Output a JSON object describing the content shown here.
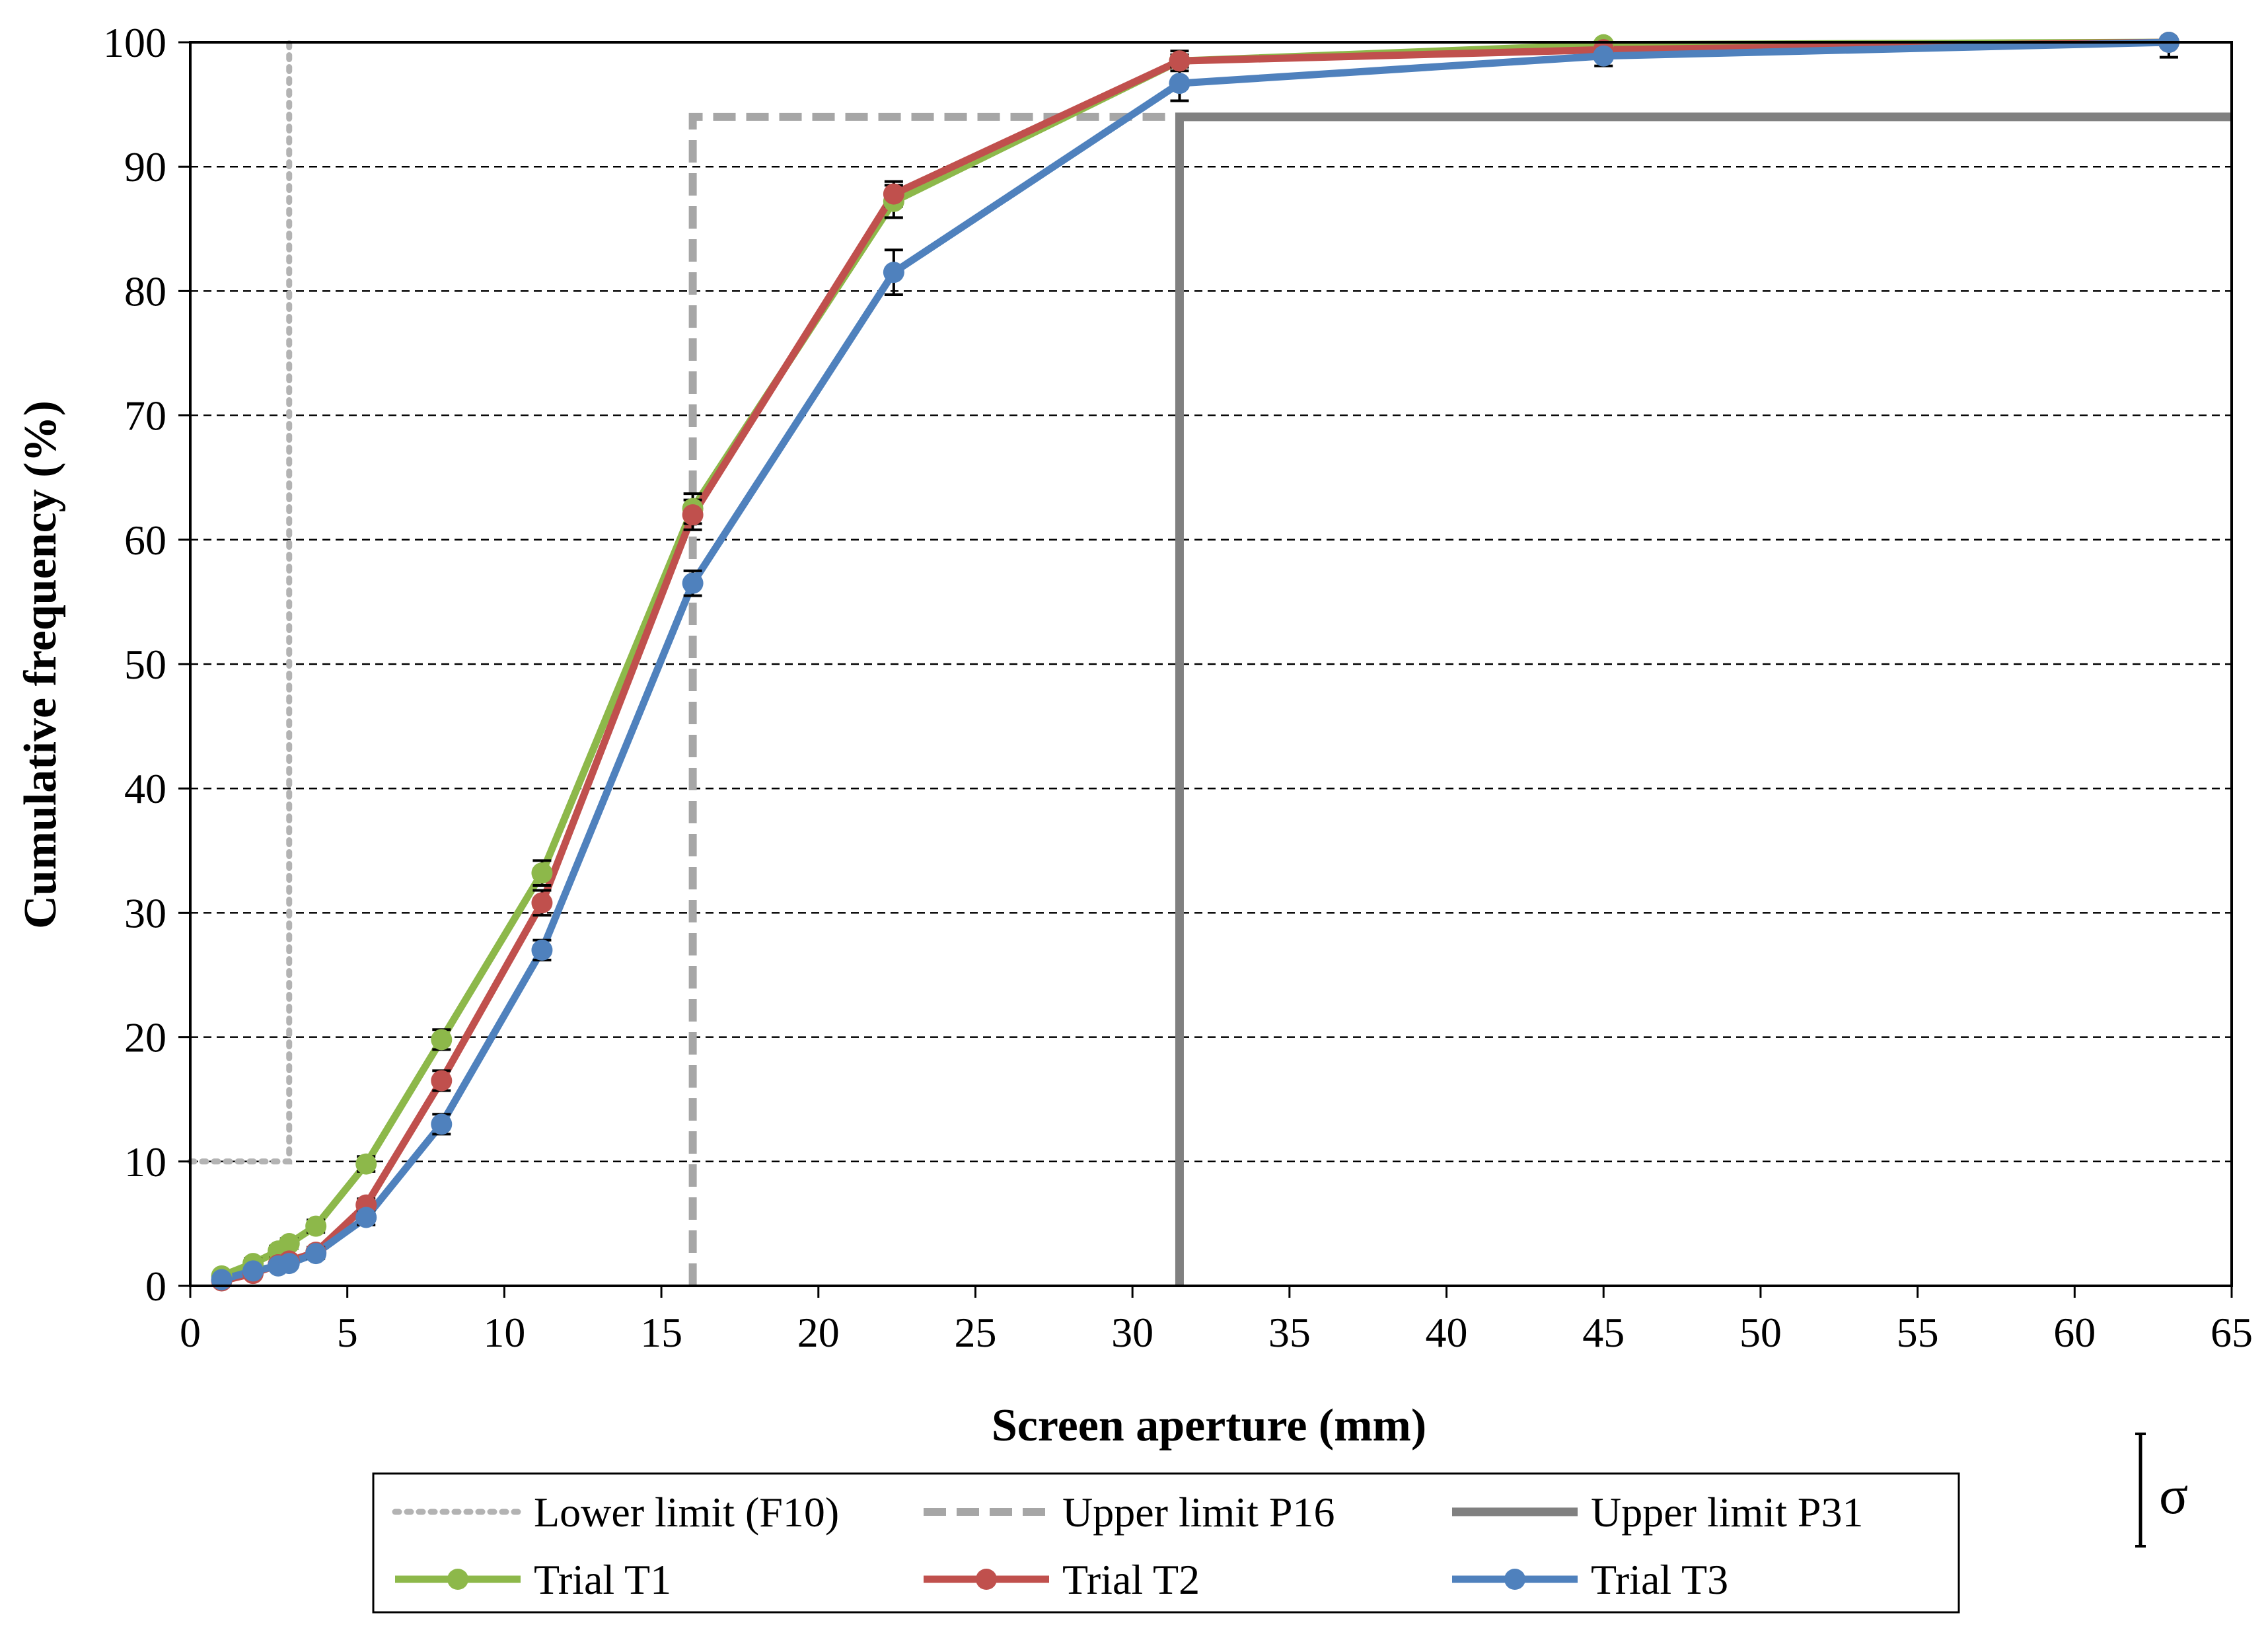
{
  "chart_data": {
    "type": "line",
    "title": "",
    "xlabel": "Screen aperture (mm)",
    "ylabel": "Cumulative frequency (%)",
    "xlim": [
      0,
      65
    ],
    "ylim": [
      0,
      100
    ],
    "xticks": [
      0,
      5,
      10,
      15,
      20,
      25,
      30,
      35,
      40,
      45,
      50,
      55,
      60,
      65
    ],
    "yticks": [
      0,
      10,
      20,
      30,
      40,
      50,
      60,
      70,
      80,
      90,
      100
    ],
    "grid": "horizontal-dashed",
    "series": [
      {
        "name": "Trial T1",
        "color": "#8db84a",
        "x": [
          1,
          2,
          2.8,
          3.15,
          4,
          5.6,
          8,
          11.2,
          16,
          22.4,
          31.5,
          45,
          63
        ],
        "y": [
          0.8,
          1.8,
          2.8,
          3.4,
          4.8,
          9.8,
          19.8,
          33.2,
          62.5,
          87.2,
          98.5,
          99.8,
          100
        ],
        "err": [
          0.3,
          0.4,
          0.4,
          0.4,
          0.5,
          0.6,
          0.8,
          1.0,
          1.2,
          1.3,
          0.5,
          0.2,
          0
        ]
      },
      {
        "name": "Trial T2",
        "color": "#c0504d",
        "x": [
          1,
          2,
          2.8,
          3.15,
          4,
          5.6,
          8,
          11.2,
          16,
          22.4,
          31.5,
          45,
          63
        ],
        "y": [
          0.4,
          1.0,
          1.7,
          2.0,
          2.7,
          6.5,
          16.5,
          30.8,
          62.0,
          87.8,
          98.5,
          99.4,
          100
        ],
        "err": [
          0.2,
          0.3,
          0.3,
          0.3,
          0.4,
          0.5,
          0.8,
          1.0,
          1.2,
          1.0,
          0.8,
          0.5,
          0
        ]
      },
      {
        "name": "Trial T3",
        "color": "#4f81bd",
        "x": [
          1,
          2,
          2.8,
          3.15,
          4,
          5.6,
          8,
          11.2,
          16,
          22.4,
          31.5,
          45,
          63
        ],
        "y": [
          0.5,
          1.2,
          1.6,
          1.8,
          2.6,
          5.5,
          13.0,
          27.0,
          56.5,
          81.5,
          96.7,
          98.9,
          100
        ],
        "err": [
          0.2,
          0.3,
          0.3,
          0.3,
          0.4,
          0.6,
          0.8,
          0.8,
          1.0,
          1.8,
          1.4,
          0.8,
          1.2
        ]
      }
    ],
    "limits": [
      {
        "name": "Lower limit (F10)",
        "style": "dotted",
        "color": "#b3b3b3",
        "points": [
          [
            0,
            10
          ],
          [
            3.15,
            10
          ],
          [
            3.15,
            100
          ]
        ]
      },
      {
        "name": "Upper limit P16",
        "style": "dashed",
        "color": "#a6a6a6",
        "points": [
          [
            16,
            0
          ],
          [
            16,
            94
          ],
          [
            31.5,
            94
          ]
        ]
      },
      {
        "name": "Upper limit P31",
        "style": "solid",
        "color": "#808080",
        "points": [
          [
            31.5,
            0
          ],
          [
            31.5,
            94
          ],
          [
            65,
            94
          ]
        ]
      }
    ],
    "legend": {
      "position": "bottom",
      "entries": [
        "Lower limit (F10)",
        "Upper limit P16",
        "Upper limit P31",
        "Trial T1",
        "Trial T2",
        "Trial T3"
      ]
    },
    "error_bar_note": "σ"
  }
}
